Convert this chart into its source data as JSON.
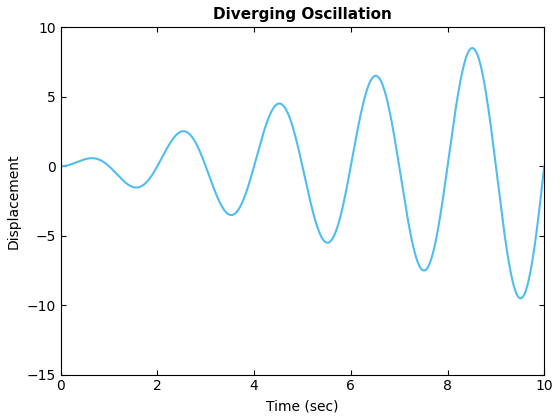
{
  "title": "Diverging Oscillation",
  "xlabel": "Time (sec)",
  "ylabel": "Displacement",
  "line_color": "#4DBEEE",
  "line_width": 1.5,
  "xlim": [
    0,
    10
  ],
  "ylim": [
    -15,
    10
  ],
  "yticks": [
    -15,
    -10,
    -5,
    0,
    5,
    10
  ],
  "xticks": [
    0,
    2,
    4,
    6,
    8,
    10
  ],
  "t_start": 0,
  "t_end": 10,
  "n_points": 2000,
  "amplitude_scale": 1.0,
  "frequency": 3.14159265358979,
  "background_color": "#ffffff",
  "title_fontsize": 11,
  "label_fontsize": 10,
  "tick_fontsize": 10
}
